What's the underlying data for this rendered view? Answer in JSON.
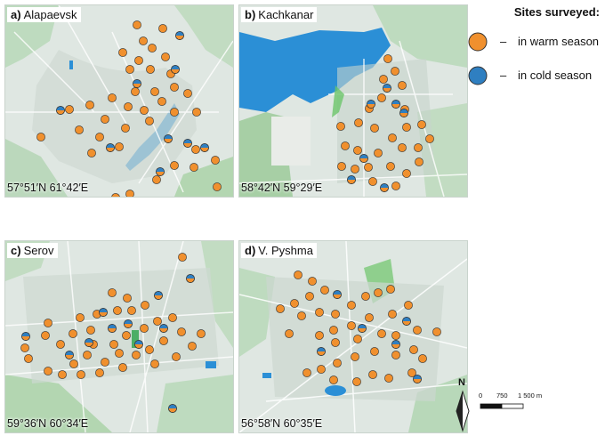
{
  "legend": {
    "title": "Sites surveyed:",
    "warm_label": "in warm season",
    "cold_label": "in cold season",
    "dash": "–",
    "warm_color": "#f0902e",
    "cold_color": "#2f7fc1"
  },
  "scale": {
    "north": "N",
    "t0": "0",
    "t1": "750",
    "t2": "1 500 m"
  },
  "panels": [
    {
      "letter": "a)",
      "name": "Alapaevsk",
      "coords": "57°51′N 61°42′E",
      "warm": [
        [
          148,
          22
        ],
        [
          177,
          26
        ],
        [
          155,
          40
        ],
        [
          132,
          53
        ],
        [
          165,
          48
        ],
        [
          180,
          58
        ],
        [
          150,
          62
        ],
        [
          140,
          72
        ],
        [
          163,
          72
        ],
        [
          186,
          77
        ],
        [
          190,
          92
        ],
        [
          168,
          97
        ],
        [
          146,
          97
        ],
        [
          120,
          104
        ],
        [
          95,
          112
        ],
        [
          72,
          117
        ],
        [
          112,
          128
        ],
        [
          138,
          114
        ],
        [
          156,
          118
        ],
        [
          176,
          108
        ],
        [
          190,
          120
        ],
        [
          205,
          99
        ],
        [
          215,
          120
        ],
        [
          135,
          138
        ],
        [
          162,
          130
        ],
        [
          106,
          148
        ],
        [
          83,
          140
        ],
        [
          40,
          148
        ],
        [
          97,
          166
        ],
        [
          128,
          159
        ],
        [
          214,
          162
        ],
        [
          236,
          174
        ],
        [
          212,
          182
        ],
        [
          190,
          180
        ],
        [
          170,
          196
        ],
        [
          140,
          212
        ],
        [
          124,
          216
        ],
        [
          238,
          204
        ],
        [
          128,
          236
        ]
      ],
      "cold": [
        [
          196,
          34
        ],
        [
          191,
          72
        ],
        [
          148,
          88
        ],
        [
          205,
          155
        ],
        [
          183,
          150
        ],
        [
          118,
          160
        ],
        [
          62,
          118
        ],
        [
          174,
          187
        ],
        [
          224,
          160
        ]
      ]
    },
    {
      "letter": "b)",
      "name": "Kachkanar",
      "coords": "58°42′N 59°29′E",
      "warm": [
        [
          167,
          60
        ],
        [
          175,
          74
        ],
        [
          162,
          83
        ],
        [
          183,
          90
        ],
        [
          160,
          104
        ],
        [
          146,
          116
        ],
        [
          186,
          117
        ],
        [
          205,
          134
        ],
        [
          188,
          137
        ],
        [
          172,
          149
        ],
        [
          152,
          138
        ],
        [
          134,
          132
        ],
        [
          114,
          136
        ],
        [
          119,
          158
        ],
        [
          133,
          163
        ],
        [
          156,
          166
        ],
        [
          170,
          181
        ],
        [
          183,
          160
        ],
        [
          201,
          160
        ],
        [
          202,
          176
        ],
        [
          214,
          150
        ],
        [
          188,
          189
        ],
        [
          176,
          203
        ],
        [
          150,
          198
        ],
        [
          130,
          184
        ],
        [
          115,
          181
        ],
        [
          145,
          182
        ]
      ],
      "cold": [
        [
          166,
          93
        ],
        [
          140,
          172
        ],
        [
          148,
          111
        ],
        [
          176,
          111
        ],
        [
          185,
          121
        ],
        [
          163,
          205
        ],
        [
          126,
          196
        ]
      ]
    },
    {
      "letter": "c)",
      "name": "Serov",
      "coords": "59°36′N 60°34′E",
      "warm": [
        [
          199,
          18
        ],
        [
          120,
          58
        ],
        [
          137,
          64
        ],
        [
          157,
          72
        ],
        [
          142,
          78
        ],
        [
          126,
          78
        ],
        [
          103,
          82
        ],
        [
          84,
          86
        ],
        [
          76,
          104
        ],
        [
          62,
          116
        ],
        [
          45,
          106
        ],
        [
          48,
          92
        ],
        [
          96,
          100
        ],
        [
          99,
          116
        ],
        [
          122,
          116
        ],
        [
          136,
          106
        ],
        [
          156,
          98
        ],
        [
          171,
          90
        ],
        [
          188,
          86
        ],
        [
          198,
          102
        ],
        [
          178,
          112
        ],
        [
          162,
          122
        ],
        [
          147,
          128
        ],
        [
          128,
          126
        ],
        [
          112,
          136
        ],
        [
          92,
          128
        ],
        [
          77,
          138
        ],
        [
          22,
          120
        ],
        [
          26,
          132
        ],
        [
          48,
          146
        ],
        [
          64,
          150
        ],
        [
          85,
          150
        ],
        [
          106,
          148
        ],
        [
          132,
          142
        ],
        [
          168,
          138
        ],
        [
          192,
          130
        ],
        [
          210,
          118
        ],
        [
          220,
          104
        ]
      ],
      "cold": [
        [
          208,
          42
        ],
        [
          172,
          61
        ],
        [
          110,
          80
        ],
        [
          94,
          114
        ],
        [
          150,
          116
        ],
        [
          178,
          98
        ],
        [
          138,
          93
        ],
        [
          72,
          128
        ],
        [
          188,
          188
        ],
        [
          23,
          107
        ],
        [
          120,
          98
        ]
      ]
    },
    {
      "letter": "d)",
      "name": "V. Pyshma",
      "coords": "56°58′N 60°35′E",
      "warm": [
        [
          66,
          38
        ],
        [
          82,
          45
        ],
        [
          96,
          55
        ],
        [
          79,
          62
        ],
        [
          62,
          70
        ],
        [
          46,
          76
        ],
        [
          70,
          84
        ],
        [
          90,
          80
        ],
        [
          108,
          82
        ],
        [
          126,
          72
        ],
        [
          142,
          62
        ],
        [
          156,
          58
        ],
        [
          170,
          54
        ],
        [
          190,
          72
        ],
        [
          172,
          82
        ],
        [
          146,
          86
        ],
        [
          126,
          95
        ],
        [
          106,
          100
        ],
        [
          90,
          106
        ],
        [
          108,
          114
        ],
        [
          133,
          110
        ],
        [
          160,
          104
        ],
        [
          176,
          106
        ],
        [
          200,
          100
        ],
        [
          222,
          102
        ],
        [
          196,
          122
        ],
        [
          176,
          128
        ],
        [
          152,
          124
        ],
        [
          130,
          130
        ],
        [
          110,
          137
        ],
        [
          92,
          144
        ],
        [
          76,
          148
        ],
        [
          106,
          156
        ],
        [
          132,
          158
        ],
        [
          150,
          150
        ],
        [
          168,
          154
        ],
        [
          194,
          148
        ],
        [
          206,
          132
        ],
        [
          56,
          104
        ]
      ],
      "cold": [
        [
          110,
          60
        ],
        [
          188,
          90
        ],
        [
          176,
          116
        ],
        [
          200,
          155
        ],
        [
          138,
          98
        ],
        [
          92,
          124
        ]
      ]
    }
  ]
}
